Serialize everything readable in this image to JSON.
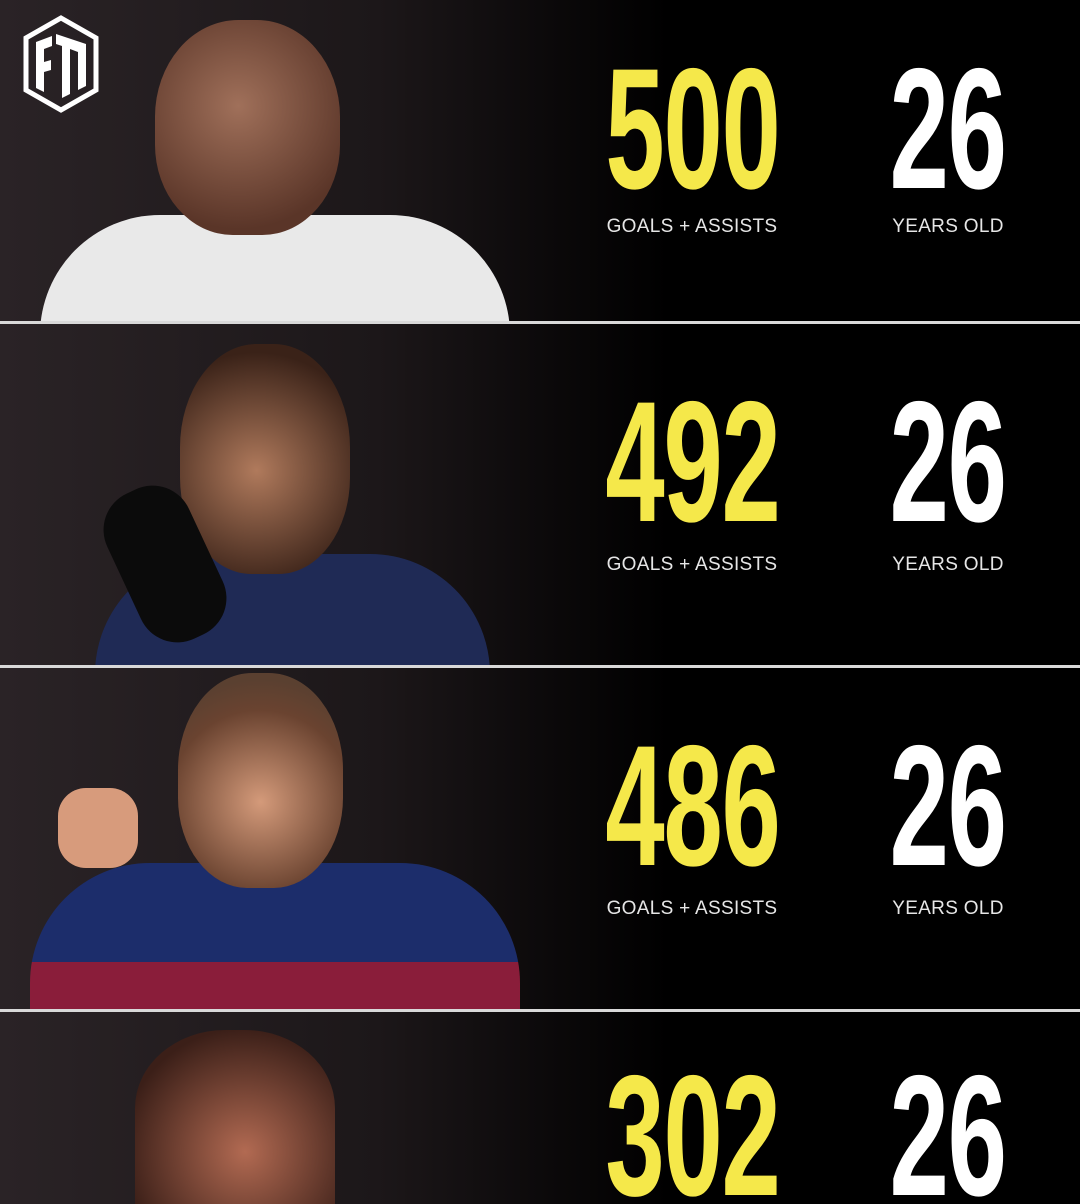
{
  "brand": {
    "logo_text": "FM"
  },
  "colors": {
    "goals": "#f5e84a",
    "age": "#ffffff",
    "background": "#000000"
  },
  "rows": [
    {
      "goals_assists": "500",
      "goals_label": "GOALS + ASSISTS",
      "age": "26",
      "age_label": "YEARS OLD",
      "kit": "#eeeeee"
    },
    {
      "goals_assists": "492",
      "goals_label": "GOALS + ASSISTS",
      "age": "26",
      "age_label": "YEARS OLD",
      "kit": "#1f2a55"
    },
    {
      "goals_assists": "486",
      "goals_label": "GOALS + ASSISTS",
      "age": "26",
      "age_label": "YEARS OLD",
      "kit": "#1c2d6b"
    },
    {
      "goals_assists": "302",
      "goals_label": "",
      "age": "26",
      "age_label": "",
      "kit": "#3a2a28"
    }
  ]
}
